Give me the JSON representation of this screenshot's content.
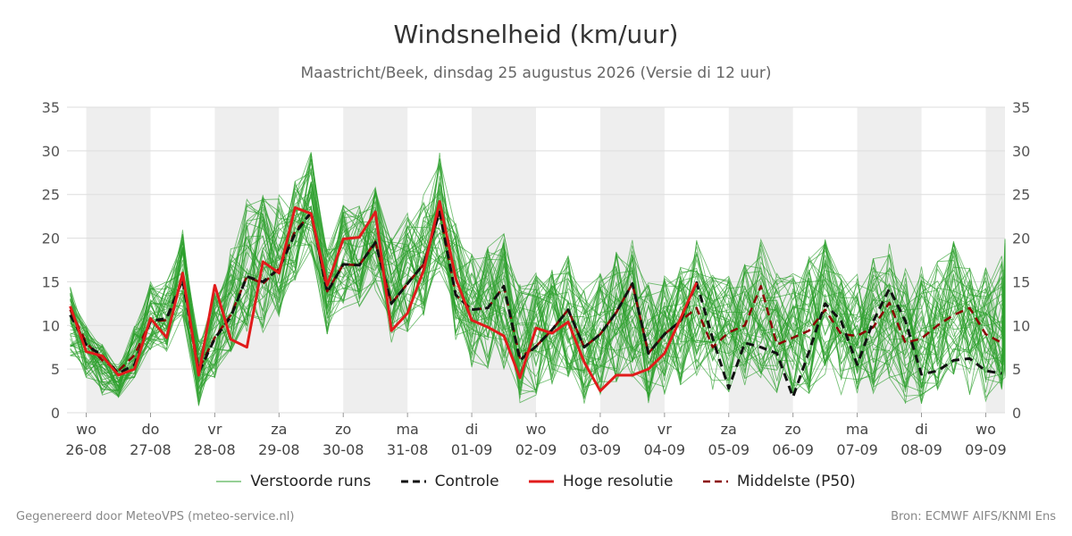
{
  "title": "Windsnelheid (km/uur)",
  "subtitle": "Maastricht/Beek, dinsdag 25 augustus 2026 (Versie di 12 uur)",
  "footer": {
    "generated": "Gegenereerd door MeteoVPS (meteo-service.nl)",
    "source": "Bron: ECMWF AIFS/KNMI Ens"
  },
  "colors": {
    "ensemble": "#2ca02c",
    "control": "#111111",
    "high_res": "#e11b1b",
    "median": "#8b0000",
    "shading": "#eeeeee",
    "grid": "#dddddd"
  },
  "chart_data": {
    "type": "line",
    "x_unit": "days from 2026-08-25 12:00",
    "x_range": [
      -0.3,
      14.3
    ],
    "ylim": [
      0,
      35
    ],
    "yticks": [
      0,
      5,
      10,
      15,
      20,
      25,
      30,
      35
    ],
    "grid": "horizontal",
    "legend_placement": "bottom",
    "weekend_shading": "alternate days",
    "day_ticks": [
      {
        "day": "wo",
        "date": "26-08"
      },
      {
        "day": "do",
        "date": "27-08"
      },
      {
        "day": "vr",
        "date": "28-08"
      },
      {
        "day": "za",
        "date": "29-08"
      },
      {
        "day": "zo",
        "date": "30-08"
      },
      {
        "day": "ma",
        "date": "31-08"
      },
      {
        "day": "di",
        "date": "01-09"
      },
      {
        "day": "wo",
        "date": "02-09"
      },
      {
        "day": "do",
        "date": "03-09"
      },
      {
        "day": "vr",
        "date": "04-09"
      },
      {
        "day": "za",
        "date": "05-09"
      },
      {
        "day": "zo",
        "date": "06-09"
      },
      {
        "day": "ma",
        "date": "07-09"
      },
      {
        "day": "di",
        "date": "08-09"
      },
      {
        "day": "wo",
        "date": "09-09"
      }
    ],
    "series": [
      {
        "name": "Hoge resolutie",
        "style": "solid",
        "points": [
          [
            -0.25,
            12.2
          ],
          [
            -0.0,
            7
          ],
          [
            0.25,
            6.5
          ],
          [
            0.5,
            4.3
          ],
          [
            0.75,
            5
          ],
          [
            1.0,
            10.8
          ],
          [
            1.25,
            8.6
          ],
          [
            1.5,
            16
          ],
          [
            1.75,
            4.3
          ],
          [
            2.0,
            14.6
          ],
          [
            2.25,
            8.4
          ],
          [
            2.5,
            7.5
          ],
          [
            2.75,
            17.3
          ],
          [
            3.0,
            16
          ],
          [
            3.25,
            23.5
          ],
          [
            3.5,
            22.8
          ],
          [
            3.75,
            14.6
          ],
          [
            4.0,
            19.9
          ],
          [
            4.25,
            20.1
          ],
          [
            4.5,
            23
          ],
          [
            4.75,
            9.4
          ],
          [
            5.0,
            11.4
          ],
          [
            5.25,
            16.3
          ],
          [
            5.5,
            24.2
          ],
          [
            5.75,
            15.4
          ],
          [
            6.0,
            10.6
          ],
          [
            6.25,
            9.8
          ],
          [
            6.5,
            8.8
          ],
          [
            6.75,
            4
          ],
          [
            7.0,
            9.7
          ],
          [
            7.25,
            9.1
          ],
          [
            7.5,
            10.4
          ],
          [
            7.75,
            5.8
          ],
          [
            8.0,
            2.5
          ],
          [
            8.25,
            4.3
          ],
          [
            8.5,
            4.3
          ],
          [
            8.75,
            5
          ],
          [
            9.0,
            6.8
          ],
          [
            9.25,
            10.8
          ],
          [
            9.5,
            14.9
          ]
        ]
      },
      {
        "name": "Controle",
        "style": "dashed",
        "points": [
          [
            -0.25,
            11.2
          ],
          [
            0.0,
            7.8
          ],
          [
            0.25,
            6.5
          ],
          [
            0.5,
            4.5
          ],
          [
            0.75,
            5.5
          ],
          [
            1.0,
            10.5
          ],
          [
            1.25,
            10.8
          ],
          [
            1.5,
            15.2
          ],
          [
            1.75,
            4.6
          ],
          [
            2.0,
            8.5
          ],
          [
            2.25,
            11
          ],
          [
            2.5,
            15.6
          ],
          [
            2.75,
            15
          ],
          [
            3.0,
            16.5
          ],
          [
            3.25,
            20.5
          ],
          [
            3.5,
            23
          ],
          [
            3.75,
            13.8
          ],
          [
            4.0,
            17
          ],
          [
            4.25,
            16.9
          ],
          [
            4.5,
            19.5
          ],
          [
            4.75,
            12.5
          ],
          [
            5.0,
            14.8
          ],
          [
            5.25,
            17
          ],
          [
            5.5,
            23
          ],
          [
            5.75,
            13.5
          ],
          [
            6.0,
            11.8
          ],
          [
            6.25,
            12
          ],
          [
            6.5,
            14.5
          ],
          [
            6.75,
            6
          ],
          [
            7.0,
            7.6
          ],
          [
            7.25,
            9.5
          ],
          [
            7.5,
            11.8
          ],
          [
            7.75,
            7.5
          ],
          [
            8.0,
            9
          ],
          [
            8.25,
            11.5
          ],
          [
            8.5,
            14.8
          ],
          [
            8.75,
            6.8
          ],
          [
            9.0,
            9
          ],
          [
            9.25,
            10.5
          ],
          [
            9.5,
            14.9
          ],
          [
            9.75,
            8.5
          ],
          [
            10.0,
            2.8
          ],
          [
            10.25,
            8
          ],
          [
            10.5,
            7.5
          ],
          [
            10.75,
            6.8
          ],
          [
            11.0,
            1.8
          ],
          [
            11.25,
            7
          ],
          [
            11.5,
            12.5
          ],
          [
            11.75,
            10.5
          ],
          [
            12.0,
            5.5
          ],
          [
            12.25,
            10.5
          ],
          [
            12.5,
            14.2
          ],
          [
            12.75,
            10.5
          ],
          [
            13.0,
            4.4
          ],
          [
            13.25,
            4.8
          ],
          [
            13.5,
            6
          ],
          [
            13.75,
            6.2
          ],
          [
            14.0,
            4.8
          ],
          [
            14.25,
            4.5
          ],
          [
            14.5,
            5.8
          ]
        ]
      },
      {
        "name": "Middelste (P50)",
        "style": "dashed",
        "points": [
          [
            -0.25,
            11.8
          ],
          [
            0.0,
            8
          ],
          [
            0.25,
            6
          ],
          [
            0.5,
            4.8
          ],
          [
            0.75,
            6.6
          ],
          [
            1.0,
            10.5
          ],
          [
            1.25,
            10.6
          ],
          [
            1.5,
            15.4
          ],
          [
            1.75,
            5
          ],
          [
            2.0,
            8.6
          ],
          [
            2.25,
            11.2
          ],
          [
            2.5,
            15.6
          ],
          [
            2.75,
            14.8
          ],
          [
            3.0,
            16.5
          ],
          [
            3.25,
            20.8
          ],
          [
            3.5,
            22.8
          ],
          [
            3.75,
            13.9
          ],
          [
            4.0,
            17
          ],
          [
            4.25,
            16.9
          ],
          [
            4.5,
            19.6
          ],
          [
            4.75,
            12.5
          ],
          [
            5.0,
            14.8
          ],
          [
            5.25,
            17
          ],
          [
            5.5,
            23.2
          ],
          [
            5.75,
            13.5
          ],
          [
            6.0,
            11.8
          ],
          [
            6.25,
            12
          ],
          [
            6.5,
            14.5
          ],
          [
            6.75,
            6.3
          ],
          [
            7.0,
            7.6
          ],
          [
            7.25,
            9.5
          ],
          [
            7.5,
            11.8
          ],
          [
            7.75,
            7.5
          ],
          [
            8.0,
            9
          ],
          [
            8.25,
            11.5
          ],
          [
            8.5,
            14.8
          ],
          [
            8.75,
            6.8
          ],
          [
            9.0,
            9
          ],
          [
            9.25,
            10.5
          ],
          [
            9.5,
            12
          ],
          [
            9.75,
            7.5
          ],
          [
            10.0,
            9.2
          ],
          [
            10.25,
            10
          ],
          [
            10.5,
            14.5
          ],
          [
            10.75,
            7.8
          ],
          [
            11.0,
            8.6
          ],
          [
            11.25,
            9.4
          ],
          [
            11.5,
            11.8
          ],
          [
            11.75,
            9
          ],
          [
            12.0,
            8.8
          ],
          [
            12.25,
            9.8
          ],
          [
            12.5,
            12.6
          ],
          [
            12.75,
            8
          ],
          [
            13.0,
            8.5
          ],
          [
            13.25,
            10
          ],
          [
            13.5,
            11.2
          ],
          [
            13.75,
            12
          ],
          [
            14.0,
            9
          ],
          [
            14.25,
            8
          ],
          [
            14.5,
            10.5
          ],
          [
            14.75,
            12.2
          ]
        ]
      }
    ],
    "ensemble": {
      "name": "Verstoorde runs",
      "members": 50,
      "spread_center": [
        10.5,
        7,
        5,
        3.5,
        7,
        11,
        11,
        16,
        4.5,
        9,
        13,
        17,
        17,
        18,
        21,
        24,
        14,
        18,
        18,
        20,
        14,
        16,
        18,
        23,
        15,
        12,
        12,
        13,
        8,
        9,
        10,
        11,
        8,
        9,
        11,
        12,
        8,
        9,
        10,
        12,
        9,
        9,
        10,
        12,
        9,
        9,
        10,
        12,
        9,
        9,
        10,
        12,
        9,
        9,
        10,
        12,
        9,
        9,
        10,
        12,
        12
      ],
      "spread_width": [
        4,
        3,
        3,
        2,
        3,
        4,
        4,
        5,
        4,
        5,
        6,
        8,
        8,
        7,
        6,
        6,
        5,
        6,
        6,
        6,
        6,
        7,
        7,
        7,
        7,
        7,
        7,
        8,
        7,
        7,
        7,
        7,
        7,
        7,
        8,
        8,
        7,
        7,
        7,
        8,
        7,
        7,
        7,
        8,
        7,
        7,
        8,
        8,
        7,
        7,
        8,
        8,
        8,
        8,
        8,
        8,
        8,
        8,
        8,
        8,
        8
      ]
    },
    "legend": [
      "Verstoorde runs",
      "Controle",
      "Hoge resolutie",
      "Middelste (P50)"
    ]
  }
}
